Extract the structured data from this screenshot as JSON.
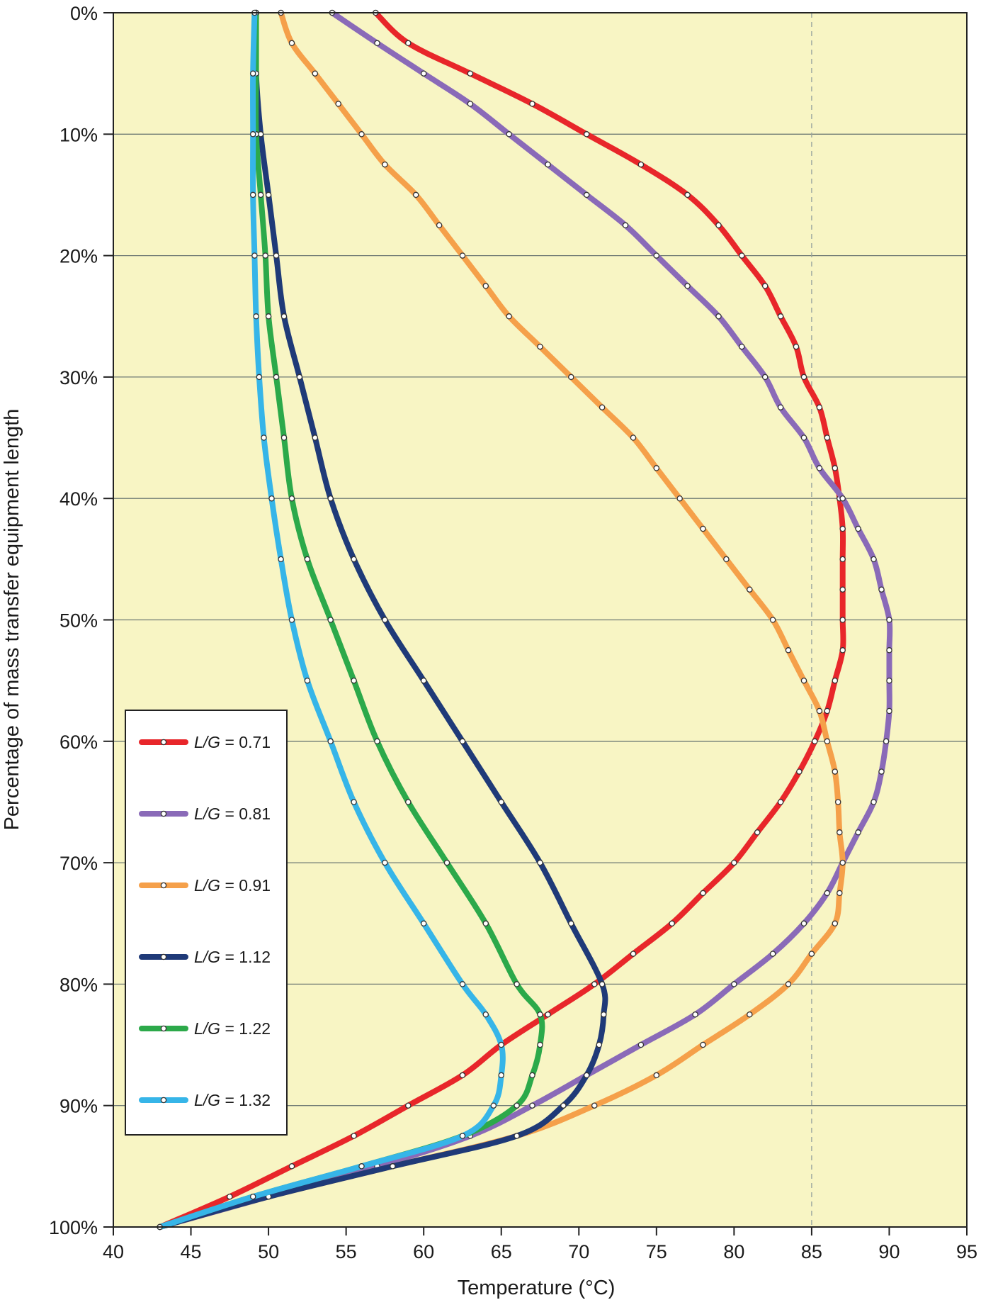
{
  "chart_data": {
    "type": "line",
    "title": "",
    "xlabel": "Temperature (°C)",
    "ylabel": "Percentage of mass transfer equipment length",
    "xlim": [
      40,
      95
    ],
    "ylim": [
      0,
      100
    ],
    "y_inverted": true,
    "x_ticks": [
      "40",
      "45",
      "50",
      "55",
      "60",
      "65",
      "70",
      "75",
      "80",
      "85",
      "90",
      "95"
    ],
    "y_ticks": [
      "0%",
      "10%",
      "20%",
      "30%",
      "40%",
      "50%",
      "60%",
      "70%",
      "80%",
      "90%",
      "100%"
    ],
    "grid": "horizontal",
    "reference_line_x": 85,
    "legend_position": "lower-left",
    "plot_background": "#f8f5c4",
    "series": [
      {
        "name": "L/G = 0.71",
        "legend_ratio": "L/G",
        "legend_value": " = 0.71",
        "color": "#e8262a",
        "points": [
          [
            56.9,
            0
          ],
          [
            59,
            2.5
          ],
          [
            63,
            5
          ],
          [
            67,
            7.5
          ],
          [
            70.5,
            10
          ],
          [
            74,
            12.5
          ],
          [
            77,
            15
          ],
          [
            79,
            17.5
          ],
          [
            80.5,
            20
          ],
          [
            82,
            22.5
          ],
          [
            83,
            25
          ],
          [
            84,
            27.5
          ],
          [
            84.5,
            30
          ],
          [
            85.5,
            32.5
          ],
          [
            86,
            35
          ],
          [
            86.5,
            37.5
          ],
          [
            86.8,
            40
          ],
          [
            87,
            42.5
          ],
          [
            87,
            45
          ],
          [
            87,
            47.5
          ],
          [
            87,
            50
          ],
          [
            87,
            52.5
          ],
          [
            86.5,
            55
          ],
          [
            86,
            57.5
          ],
          [
            85.2,
            60
          ],
          [
            84.2,
            62.5
          ],
          [
            83,
            65
          ],
          [
            81.5,
            67.5
          ],
          [
            80,
            70
          ],
          [
            78,
            72.5
          ],
          [
            76,
            75
          ],
          [
            73.5,
            77.5
          ],
          [
            71,
            80
          ],
          [
            68,
            82.5
          ],
          [
            65,
            85
          ],
          [
            62.5,
            87.5
          ],
          [
            59,
            90
          ],
          [
            55.5,
            92.5
          ],
          [
            51.5,
            95
          ],
          [
            47.5,
            97.5
          ],
          [
            43,
            100
          ]
        ]
      },
      {
        "name": "L/G = 0.81",
        "legend_ratio": "L/G",
        "legend_value": " = 0.81",
        "color": "#8a6ab8",
        "points": [
          [
            54.1,
            0
          ],
          [
            57,
            2.5
          ],
          [
            60,
            5
          ],
          [
            63,
            7.5
          ],
          [
            65.5,
            10
          ],
          [
            68,
            12.5
          ],
          [
            70.5,
            15
          ],
          [
            73,
            17.5
          ],
          [
            75,
            20
          ],
          [
            77,
            22.5
          ],
          [
            79,
            25
          ],
          [
            80.5,
            27.5
          ],
          [
            82,
            30
          ],
          [
            83,
            32.5
          ],
          [
            84.5,
            35
          ],
          [
            85.5,
            37.5
          ],
          [
            87,
            40
          ],
          [
            88,
            42.5
          ],
          [
            89,
            45
          ],
          [
            89.5,
            47.5
          ],
          [
            90,
            50
          ],
          [
            90,
            52.5
          ],
          [
            90,
            55
          ],
          [
            90,
            57.5
          ],
          [
            89.8,
            60
          ],
          [
            89.5,
            62.5
          ],
          [
            89,
            65
          ],
          [
            88,
            67.5
          ],
          [
            87,
            70
          ],
          [
            86,
            72.5
          ],
          [
            84.5,
            75
          ],
          [
            82.5,
            77.5
          ],
          [
            80,
            80
          ],
          [
            77.5,
            82.5
          ],
          [
            74,
            85
          ],
          [
            70.5,
            87.5
          ],
          [
            67,
            90
          ],
          [
            63,
            92.5
          ],
          [
            57,
            95
          ],
          [
            50,
            97.5
          ],
          [
            43,
            100
          ]
        ]
      },
      {
        "name": "L/G = 0.91",
        "legend_ratio": "L/G",
        "legend_value": " = 0.91",
        "color": "#f5a04a",
        "points": [
          [
            50.8,
            0
          ],
          [
            51.5,
            2.5
          ],
          [
            53,
            5
          ],
          [
            54.5,
            7.5
          ],
          [
            56,
            10
          ],
          [
            57.5,
            12.5
          ],
          [
            59.5,
            15
          ],
          [
            61,
            17.5
          ],
          [
            62.5,
            20
          ],
          [
            64,
            22.5
          ],
          [
            65.5,
            25
          ],
          [
            67.5,
            27.5
          ],
          [
            69.5,
            30
          ],
          [
            71.5,
            32.5
          ],
          [
            73.5,
            35
          ],
          [
            75,
            37.5
          ],
          [
            76.5,
            40
          ],
          [
            78,
            42.5
          ],
          [
            79.5,
            45
          ],
          [
            81,
            47.5
          ],
          [
            82.5,
            50
          ],
          [
            83.5,
            52.5
          ],
          [
            84.5,
            55
          ],
          [
            85.5,
            57.5
          ],
          [
            86,
            60
          ],
          [
            86.5,
            62.5
          ],
          [
            86.7,
            65
          ],
          [
            86.8,
            67.5
          ],
          [
            87,
            70
          ],
          [
            86.8,
            72.5
          ],
          [
            86.5,
            75
          ],
          [
            85,
            77.5
          ],
          [
            83.5,
            80
          ],
          [
            81,
            82.5
          ],
          [
            78,
            85
          ],
          [
            75,
            87.5
          ],
          [
            71,
            90
          ],
          [
            66,
            92.5
          ],
          [
            58,
            95
          ],
          [
            50,
            97.5
          ],
          [
            43,
            100
          ]
        ]
      },
      {
        "name": "L/G = 1.12",
        "legend_ratio": "L/G",
        "legend_value": " = 1.12",
        "color": "#1f3a78",
        "points": [
          [
            49.2,
            0
          ],
          [
            49.2,
            5
          ],
          [
            49.5,
            10
          ],
          [
            50,
            15
          ],
          [
            50.5,
            20
          ],
          [
            51,
            25
          ],
          [
            52,
            30
          ],
          [
            53,
            35
          ],
          [
            54,
            40
          ],
          [
            55.5,
            45
          ],
          [
            57.5,
            50
          ],
          [
            60,
            55
          ],
          [
            62.5,
            60
          ],
          [
            65,
            65
          ],
          [
            67.5,
            70
          ],
          [
            69.5,
            75
          ],
          [
            71.5,
            80
          ],
          [
            71.6,
            82.5
          ],
          [
            71.3,
            85
          ],
          [
            70.5,
            87.5
          ],
          [
            69,
            90
          ],
          [
            66,
            92.5
          ],
          [
            58,
            95
          ],
          [
            50,
            97.5
          ],
          [
            43,
            100
          ]
        ]
      },
      {
        "name": "L/G = 1.22",
        "legend_ratio": "L/G",
        "legend_value": " = 1.22",
        "color": "#2ca94a",
        "points": [
          [
            49.2,
            0
          ],
          [
            49.2,
            5
          ],
          [
            49.2,
            10
          ],
          [
            49.5,
            15
          ],
          [
            49.8,
            20
          ],
          [
            50,
            25
          ],
          [
            50.5,
            30
          ],
          [
            51,
            35
          ],
          [
            51.5,
            40
          ],
          [
            52.5,
            45
          ],
          [
            54,
            50
          ],
          [
            55.5,
            55
          ],
          [
            57,
            60
          ],
          [
            59,
            65
          ],
          [
            61.5,
            70
          ],
          [
            64,
            75
          ],
          [
            66,
            80
          ],
          [
            67.5,
            82.5
          ],
          [
            67.5,
            85
          ],
          [
            67,
            87.5
          ],
          [
            66,
            90
          ],
          [
            62.5,
            92.5
          ],
          [
            56,
            95
          ],
          [
            49,
            97.5
          ],
          [
            43,
            100
          ]
        ]
      },
      {
        "name": "L/G = 1.32",
        "legend_ratio": "L/G",
        "legend_value": " = 1.32",
        "color": "#36b5e8",
        "points": [
          [
            49.1,
            0
          ],
          [
            49,
            5
          ],
          [
            49,
            10
          ],
          [
            49,
            15
          ],
          [
            49.1,
            20
          ],
          [
            49.2,
            25
          ],
          [
            49.4,
            30
          ],
          [
            49.7,
            35
          ],
          [
            50.2,
            40
          ],
          [
            50.8,
            45
          ],
          [
            51.5,
            50
          ],
          [
            52.5,
            55
          ],
          [
            54,
            60
          ],
          [
            55.5,
            65
          ],
          [
            57.5,
            70
          ],
          [
            60,
            75
          ],
          [
            62.5,
            80
          ],
          [
            64,
            82.5
          ],
          [
            65,
            85
          ],
          [
            65,
            87.5
          ],
          [
            64.5,
            90
          ],
          [
            62.5,
            92.5
          ],
          [
            56,
            95
          ],
          [
            49,
            97.5
          ],
          [
            43,
            100
          ]
        ]
      }
    ]
  }
}
